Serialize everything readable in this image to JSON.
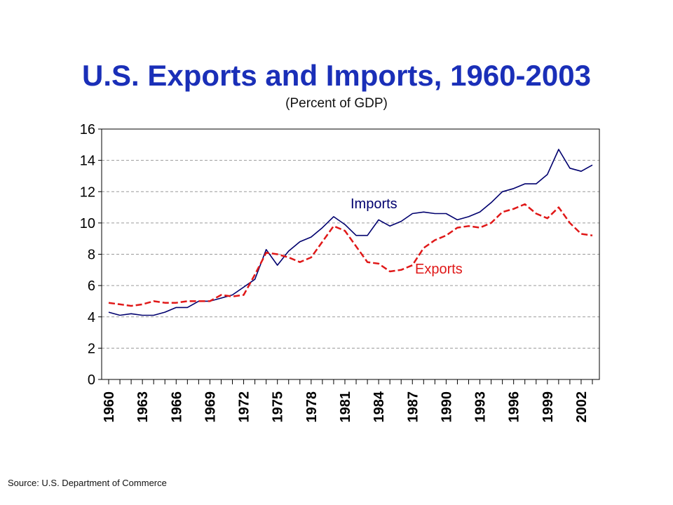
{
  "title": "U.S. Exports and Imports, 1960-2003",
  "subtitle": "(Percent of GDP)",
  "source": "Source:  U.S. Department of Commerce",
  "colors": {
    "imports": "#00006e",
    "exports": "#e01818",
    "title": "#1a2fb8",
    "grid": "#9a9a9a"
  },
  "chart_data": {
    "type": "line",
    "title": "U.S. Exports and Imports, 1960-2003",
    "subtitle": "(Percent of GDP)",
    "xlabel": "",
    "ylabel": "",
    "ylim": [
      0,
      16
    ],
    "yticks": [
      "0",
      "2",
      "4",
      "6",
      "8",
      "10",
      "12",
      "14",
      "16"
    ],
    "xlim": [
      1960,
      2003
    ],
    "xtick_labels": [
      "1960",
      "1963",
      "1966",
      "1969",
      "1972",
      "1975",
      "1978",
      "1981",
      "1984",
      "1987",
      "1990",
      "1993",
      "1996",
      "1999",
      "2002"
    ],
    "grid": "horizontal dashed",
    "x": [
      1960,
      1961,
      1962,
      1963,
      1964,
      1965,
      1966,
      1967,
      1968,
      1969,
      1970,
      1971,
      1972,
      1973,
      1974,
      1975,
      1976,
      1977,
      1978,
      1979,
      1980,
      1981,
      1982,
      1983,
      1984,
      1985,
      1986,
      1987,
      1988,
      1989,
      1990,
      1991,
      1992,
      1993,
      1994,
      1995,
      1996,
      1997,
      1998,
      1999,
      2000,
      2001,
      2002,
      2003
    ],
    "series": [
      {
        "name": "Imports",
        "style": "solid",
        "values": [
          4.3,
          4.1,
          4.2,
          4.1,
          4.1,
          4.3,
          4.6,
          4.6,
          5.0,
          5.0,
          5.2,
          5.4,
          5.9,
          6.4,
          8.3,
          7.3,
          8.2,
          8.8,
          9.1,
          9.7,
          10.4,
          9.9,
          9.2,
          9.2,
          10.2,
          9.8,
          10.1,
          10.6,
          10.7,
          10.6,
          10.6,
          10.2,
          10.4,
          10.7,
          11.3,
          12.0,
          12.2,
          12.5,
          12.5,
          13.1,
          14.7,
          13.5,
          13.3,
          13.7
        ]
      },
      {
        "name": "Exports",
        "style": "dashed",
        "values": [
          4.9,
          4.8,
          4.7,
          4.8,
          5.0,
          4.9,
          4.9,
          5.0,
          5.0,
          5.0,
          5.4,
          5.3,
          5.4,
          6.7,
          8.1,
          8.0,
          7.8,
          7.5,
          7.8,
          8.8,
          9.8,
          9.5,
          8.5,
          7.5,
          7.4,
          6.9,
          7.0,
          7.3,
          8.4,
          8.9,
          9.2,
          9.7,
          9.8,
          9.7,
          10.0,
          10.7,
          10.9,
          11.2,
          10.6,
          10.3,
          11.0,
          10.0,
          9.3,
          9.2
        ]
      }
    ],
    "annotations": [
      {
        "text": "Imports",
        "series": "Imports"
      },
      {
        "text": "Exports",
        "series": "Exports"
      }
    ]
  }
}
